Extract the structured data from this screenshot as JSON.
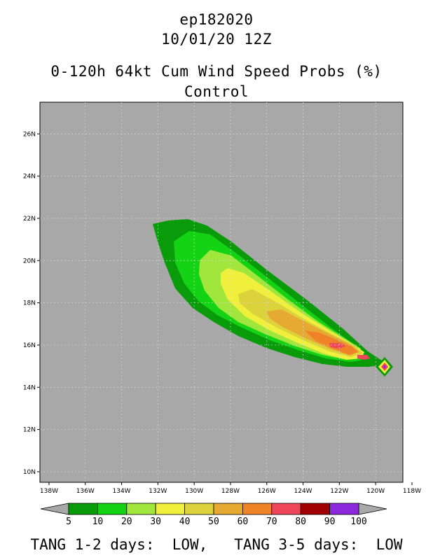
{
  "header": {
    "storm_id": "ep182020",
    "date": "10/01/20 12Z",
    "product": "0-120h 64kt Cum Wind Speed Probs (%)",
    "member": "Control"
  },
  "map": {
    "lon_ticks": [
      "138W",
      "136W",
      "134W",
      "132W",
      "130W",
      "128W",
      "126W",
      "124W",
      "122W",
      "120W",
      "118W"
    ],
    "lat_ticks": [
      "26N",
      "24N",
      "22N",
      "20N",
      "18N",
      "16N",
      "14N",
      "12N",
      "10N"
    ],
    "lon_range": [
      -138.5,
      -118.5
    ],
    "lat_range": [
      9.5,
      27.5
    ],
    "background_color": "#a8a8a8"
  },
  "legend": {
    "labels": [
      "5",
      "10",
      "20",
      "30",
      "40",
      "50",
      "60",
      "70",
      "80",
      "90",
      "100"
    ],
    "colors": [
      "#0a9b0a",
      "#14d214",
      "#a0e63c",
      "#f0f03c",
      "#dcd23c",
      "#e6aa32",
      "#f08228",
      "#f0465a",
      "#a00000",
      "#8c28dc"
    ],
    "end_color": "#a8a8a8"
  },
  "footer": {
    "text": "TANG 1-2 days:  LOW,   TANG 3-5 days:  LOW"
  }
}
